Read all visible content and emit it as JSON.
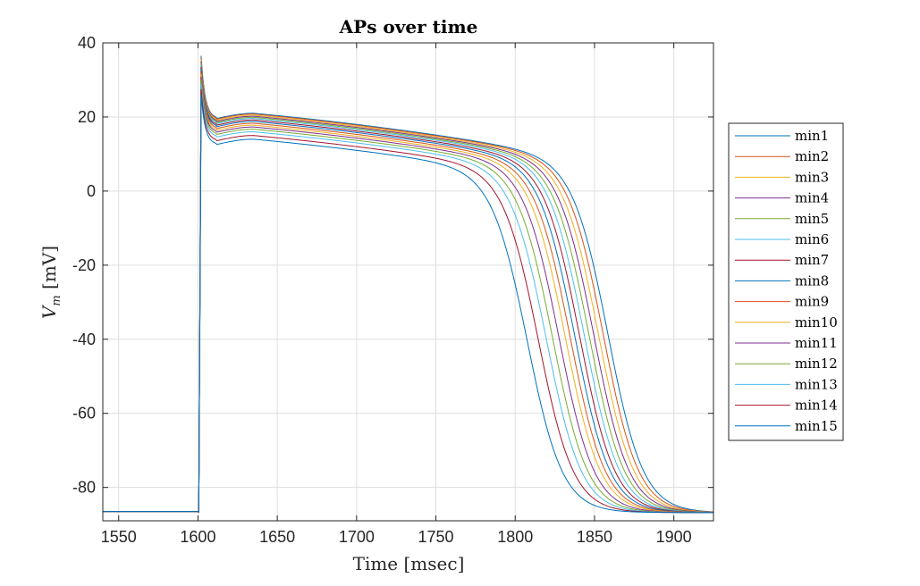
{
  "chart_data": {
    "type": "line",
    "title": "APs over time",
    "xlabel": "Time [msec]",
    "ylabel_main": "V",
    "ylabel_sub": "m",
    "ylabel_unit": " [mV]",
    "xlim": [
      1540,
      1925
    ],
    "ylim": [
      -89,
      40
    ],
    "xticks": [
      1550,
      1600,
      1650,
      1700,
      1750,
      1800,
      1850,
      1900
    ],
    "yticks": [
      40,
      20,
      0,
      -20,
      -40,
      -60,
      -80
    ],
    "grid": true,
    "legend_position": "outside-right",
    "series": [
      {
        "name": "min1",
        "color": "#0072BD",
        "peak": 36.5,
        "plateau": 21.0,
        "repol_x": 1859
      },
      {
        "name": "min2",
        "color": "#D95319",
        "peak": 36.0,
        "plateau": 20.8,
        "repol_x": 1856
      },
      {
        "name": "min3",
        "color": "#EDB120",
        "peak": 35.5,
        "plateau": 20.5,
        "repol_x": 1853
      },
      {
        "name": "min4",
        "color": "#7E2F8E",
        "peak": 35.0,
        "plateau": 20.2,
        "repol_x": 1850
      },
      {
        "name": "min5",
        "color": "#77AC30",
        "peak": 34.5,
        "plateau": 19.9,
        "repol_x": 1847
      },
      {
        "name": "min6",
        "color": "#4DBEEE",
        "peak": 34.0,
        "plateau": 19.6,
        "repol_x": 1844
      },
      {
        "name": "min7",
        "color": "#A2142F",
        "peak": 33.5,
        "plateau": 19.2,
        "repol_x": 1841
      },
      {
        "name": "min8",
        "color": "#0072BD",
        "peak": 33.0,
        "plateau": 18.8,
        "repol_x": 1838
      },
      {
        "name": "min9",
        "color": "#D95319",
        "peak": 32.3,
        "plateau": 18.3,
        "repol_x": 1835
      },
      {
        "name": "min10",
        "color": "#EDB120",
        "peak": 31.6,
        "plateau": 17.8,
        "repol_x": 1832
      },
      {
        "name": "min11",
        "color": "#7E2F8E",
        "peak": 30.8,
        "plateau": 17.3,
        "repol_x": 1828
      },
      {
        "name": "min12",
        "color": "#77AC30",
        "peak": 30.0,
        "plateau": 16.7,
        "repol_x": 1824
      },
      {
        "name": "min13",
        "color": "#4DBEEE",
        "peak": 29.0,
        "plateau": 16.0,
        "repol_x": 1820
      },
      {
        "name": "min14",
        "color": "#A2142F",
        "peak": 27.5,
        "plateau": 15.0,
        "repol_x": 1815
      },
      {
        "name": "min15",
        "color": "#0072BD",
        "peak": 26.0,
        "plateau": 14.0,
        "repol_x": 1808
      }
    ]
  }
}
